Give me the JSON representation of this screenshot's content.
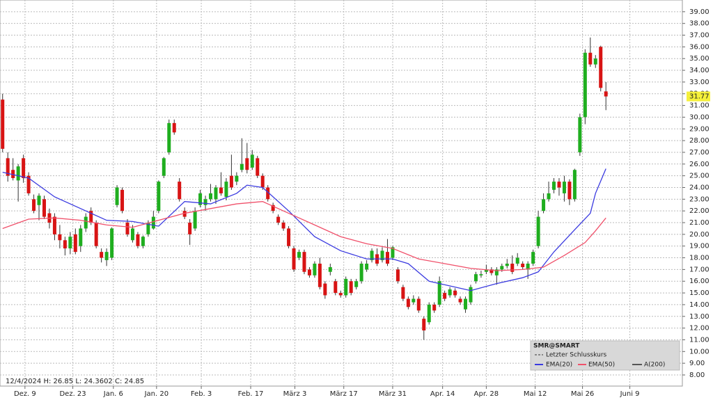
{
  "chart_data": {
    "type": "candlestick",
    "info": "12/4/2024  H: 26.85  L: 24.3602  C: 24.85",
    "up_color": "#1fae1f",
    "down_color": "#d81414",
    "ohlc": [
      [
        31.5,
        32,
        27,
        27.3
      ],
      [
        26.5,
        27,
        24.5,
        25
      ],
      [
        25.5,
        26.5,
        24.6,
        24.8
      ],
      [
        24.6,
        26,
        22.8,
        25.8
      ],
      [
        26.5,
        26.8,
        24.4,
        24.8
      ],
      [
        25,
        25.3,
        23.3,
        23.5
      ],
      [
        23,
        23.4,
        21.8,
        22
      ],
      [
        22.5,
        23.5,
        21.2,
        23.3
      ],
      [
        23,
        23.3,
        21.3,
        21.5
      ],
      [
        21.8,
        22.2,
        20.5,
        21
      ],
      [
        21.5,
        21.8,
        19.5,
        20
      ],
      [
        20,
        20.8,
        18.8,
        19.5
      ],
      [
        19.5,
        19.8,
        18.2,
        18.8
      ],
      [
        18.8,
        20.2,
        18.3,
        19.8
      ],
      [
        20,
        20.5,
        18.3,
        18.5
      ],
      [
        19,
        20.8,
        18.5,
        20.5
      ],
      [
        20.5,
        21.8,
        20.2,
        21.5
      ],
      [
        22,
        22.3,
        20.8,
        21
      ],
      [
        21,
        21.2,
        18.8,
        19
      ],
      [
        18.5,
        18.8,
        17.6,
        18
      ],
      [
        17.8,
        18.8,
        17.3,
        18.5
      ],
      [
        18,
        20.6,
        17.8,
        20.5
      ],
      [
        22.5,
        24.2,
        22.3,
        24
      ],
      [
        23.8,
        24,
        21.8,
        22
      ],
      [
        21,
        21.3,
        19.8,
        20
      ],
      [
        19.5,
        20.8,
        19.3,
        20.5
      ],
      [
        20,
        20.2,
        18.8,
        19
      ],
      [
        19,
        19.9,
        18.8,
        19.8
      ],
      [
        20,
        21.2,
        19.8,
        21
      ],
      [
        20.5,
        22,
        20.4,
        21.5
      ],
      [
        22,
        24.6,
        21.8,
        24.5
      ],
      [
        25,
        26.6,
        24.8,
        26.5
      ],
      [
        27,
        29.8,
        26.8,
        29.5
      ],
      [
        29.5,
        29.8,
        28.5,
        28.7
      ],
      [
        24.5,
        24.8,
        22.8,
        23
      ],
      [
        22,
        22.3,
        21.3,
        21.5
      ],
      [
        21,
        21.3,
        19.1,
        20
      ],
      [
        20.5,
        22.3,
        20.3,
        22
      ],
      [
        22.5,
        23.8,
        22.3,
        23.5
      ],
      [
        22.5,
        23.3,
        22,
        23
      ],
      [
        23,
        24.3,
        22.8,
        23.5
      ],
      [
        23,
        24.2,
        22.6,
        24
      ],
      [
        24,
        25.3,
        23.3,
        23.5
      ],
      [
        23.2,
        24.8,
        22.9,
        24.5
      ],
      [
        25,
        26.8,
        23.8,
        24
      ],
      [
        24.5,
        25.3,
        24.2,
        25
      ],
      [
        25.5,
        28.2,
        25.3,
        26
      ],
      [
        26.5,
        27.8,
        25.2,
        25.5
      ],
      [
        25.7,
        27.2,
        25.5,
        26.8
      ],
      [
        26.5,
        26.7,
        24.8,
        25
      ],
      [
        25,
        25.2,
        23.8,
        24
      ],
      [
        24,
        24.2,
        22.8,
        23
      ],
      [
        22.5,
        22.7,
        21.8,
        22
      ],
      [
        21.5,
        21.7,
        20.8,
        21
      ],
      [
        21,
        21.2,
        20.3,
        20.5
      ],
      [
        20.5,
        20.7,
        18.8,
        19
      ],
      [
        18.8,
        19,
        16.8,
        17
      ],
      [
        18,
        18.7,
        17.8,
        18.5
      ],
      [
        18.5,
        18.7,
        16.6,
        16.8
      ],
      [
        17,
        17.2,
        16.3,
        16.5
      ],
      [
        16.5,
        17.7,
        16.3,
        17.5
      ],
      [
        17.5,
        18,
        15.3,
        15.5
      ],
      [
        15.8,
        16,
        14.5,
        14.8
      ],
      [
        16.8,
        17.5,
        16.5,
        17.2
      ],
      [
        16,
        16.2,
        14.8,
        15
      ],
      [
        15,
        15.2,
        14.6,
        14.8
      ],
      [
        14.8,
        16.4,
        14.6,
        16.2
      ],
      [
        16,
        16.2,
        14.8,
        15
      ],
      [
        15.5,
        16.2,
        15.3,
        16
      ],
      [
        16,
        17.7,
        15.8,
        17.5
      ],
      [
        17,
        17.8,
        16.8,
        17.5
      ],
      [
        17.8,
        18.8,
        17.6,
        18.6
      ],
      [
        18.3,
        18.8,
        17.3,
        17.5
      ],
      [
        17.8,
        18.9,
        17.6,
        18.6
      ],
      [
        18.5,
        19.6,
        17.3,
        17.5
      ],
      [
        18,
        19,
        17.8,
        18.9
      ],
      [
        17,
        17.2,
        15.8,
        16
      ],
      [
        15.5,
        15.7,
        14.3,
        14.5
      ],
      [
        14.5,
        14.7,
        13.6,
        13.8
      ],
      [
        14.2,
        14.8,
        14,
        14.5
      ],
      [
        14.5,
        14.7,
        13.3,
        13.5
      ],
      [
        12.8,
        13,
        11,
        11.8
      ],
      [
        12.5,
        14.2,
        12.3,
        14
      ],
      [
        14,
        14.2,
        13.3,
        13.5
      ],
      [
        14,
        16.4,
        13.8,
        16
      ],
      [
        15,
        15.2,
        14.3,
        14.5
      ],
      [
        14.8,
        15.5,
        14.6,
        15.3
      ],
      [
        15.2,
        15.4,
        14.6,
        14.8
      ],
      [
        14.5,
        14.7,
        14,
        14.2
      ],
      [
        13.6,
        14.7,
        13.3,
        14.5
      ],
      [
        14.2,
        15.7,
        14,
        15.5
      ],
      [
        16,
        16.8,
        15.8,
        16.6
      ],
      [
        16.5,
        16.9,
        16.3,
        16.6
      ],
      [
        16.8,
        17.4,
        16.6,
        17
      ],
      [
        17,
        17.2,
        16.5,
        16.7
      ],
      [
        16.5,
        17.2,
        15.7,
        17
      ],
      [
        17,
        17.5,
        16.8,
        17.3
      ],
      [
        17.3,
        17.9,
        17.1,
        17.5
      ],
      [
        17.5,
        18.2,
        16.6,
        16.8
      ],
      [
        17.5,
        18.4,
        17.3,
        18
      ],
      [
        17.5,
        17.7,
        17,
        17.2
      ],
      [
        17,
        17.7,
        16.2,
        17.5
      ],
      [
        17.5,
        18.7,
        17.3,
        18.5
      ],
      [
        19,
        22,
        18.8,
        21.5
      ],
      [
        22,
        23.5,
        21.8,
        23
      ],
      [
        23,
        24.5,
        22.8,
        23.5
      ],
      [
        23.8,
        24.8,
        23.5,
        24.5
      ],
      [
        24.5,
        24.8,
        23.3,
        24
      ],
      [
        23.5,
        25,
        22.8,
        24.5
      ],
      [
        24.5,
        24.7,
        22.5,
        23
      ],
      [
        23,
        25.6,
        22.8,
        25.5
      ],
      [
        27,
        30.3,
        26.7,
        30
      ],
      [
        30,
        35.8,
        29.4,
        35.5
      ],
      [
        35.5,
        36.8,
        34.3,
        34.5
      ],
      [
        34.5,
        35.3,
        34.2,
        35
      ],
      [
        36,
        36.1,
        32.2,
        32.5
      ],
      [
        32.2,
        33,
        30.6,
        31.77
      ]
    ],
    "series": [
      {
        "name": "EMA(20)",
        "color": "#3a3ae0",
        "x": [
          0,
          5,
          10,
          15,
          20,
          25,
          30,
          35,
          40,
          45,
          47,
          50,
          55,
          60,
          65,
          70,
          75,
          78,
          82,
          86,
          90,
          95,
          100,
          103,
          106,
          110,
          113,
          114,
          116
        ],
        "values": [
          25.3,
          24.8,
          23.2,
          22.2,
          21.2,
          21.1,
          20.7,
          22.8,
          22.6,
          23.5,
          24.2,
          24.0,
          22.0,
          19.8,
          18.6,
          17.9,
          17.9,
          17.5,
          16.0,
          15.6,
          15.2,
          15.8,
          16.3,
          16.8,
          18.5,
          20.4,
          21.8,
          23.5,
          25.6
        ]
      },
      {
        "name": "EMA(50)",
        "color": "#f0506a",
        "x": [
          0,
          5,
          10,
          15,
          20,
          25,
          30,
          35,
          40,
          45,
          50,
          55,
          60,
          65,
          70,
          75,
          80,
          85,
          90,
          95,
          100,
          104,
          108,
          112,
          114,
          116
        ],
        "values": [
          20.5,
          21.3,
          21.4,
          21.2,
          20.8,
          20.6,
          21.2,
          21.8,
          22.2,
          22.6,
          22.8,
          21.8,
          20.8,
          19.8,
          19.2,
          18.8,
          17.9,
          17.5,
          17.1,
          16.9,
          17.0,
          17.2,
          18.2,
          19.3,
          20.3,
          21.4
        ]
      }
    ],
    "legend": {
      "title": "SMR@SMART",
      "last_close": "Letzter Schlusskurs",
      "extra": "A(200)"
    },
    "last_price": {
      "value": 31.77,
      "label": "31.77"
    },
    "xlim": [
      -0.5,
      130.7
    ],
    "xticks": [
      {
        "value": 4.3,
        "label": "Dez. 9"
      },
      {
        "value": 13.5,
        "label": "Dez. 23"
      },
      {
        "value": 21.3,
        "label": "Jan. 6"
      },
      {
        "value": 29.6,
        "label": "Jan. 20"
      },
      {
        "value": 38.2,
        "label": "Feb. 3"
      },
      {
        "value": 47.7,
        "label": "Feb. 17"
      },
      {
        "value": 56.2,
        "label": "März 3"
      },
      {
        "value": 65.6,
        "label": "März 17"
      },
      {
        "value": 75,
        "label": "März 31"
      },
      {
        "value": 84.6,
        "label": "Apr. 14"
      },
      {
        "value": 93,
        "label": "Apr. 28"
      },
      {
        "value": 102.4,
        "label": "Mai 12"
      },
      {
        "value": 111.5,
        "label": "Mai 26"
      },
      {
        "value": 120.6,
        "label": "Juni 9"
      }
    ],
    "ylim": [
      7.05,
      40.0
    ],
    "yticks": [
      {
        "value": 8,
        "label": "8.00"
      },
      {
        "value": 9,
        "label": "9.00"
      },
      {
        "value": 10,
        "label": "10.00"
      },
      {
        "value": 11,
        "label": "11.00"
      },
      {
        "value": 12,
        "label": "12.00"
      },
      {
        "value": 13,
        "label": "13.00"
      },
      {
        "value": 14,
        "label": "14.00"
      },
      {
        "value": 15,
        "label": "15.00"
      },
      {
        "value": 16,
        "label": "16.00"
      },
      {
        "value": 17,
        "label": "17.00"
      },
      {
        "value": 18,
        "label": "18.00"
      },
      {
        "value": 19,
        "label": "19.00"
      },
      {
        "value": 20,
        "label": "20.00"
      },
      {
        "value": 21,
        "label": "21.00"
      },
      {
        "value": 22,
        "label": "22.00"
      },
      {
        "value": 23,
        "label": "23.00"
      },
      {
        "value": 24,
        "label": "24.00"
      },
      {
        "value": 25,
        "label": "25.00"
      },
      {
        "value": 26,
        "label": "26.00"
      },
      {
        "value": 27,
        "label": "27.00"
      },
      {
        "value": 28,
        "label": "28.00"
      },
      {
        "value": 29,
        "label": "29.00"
      },
      {
        "value": 30,
        "label": "30.00"
      },
      {
        "value": 31,
        "label": "31.00"
      },
      {
        "value": 32,
        "label": "32.00"
      },
      {
        "value": 33,
        "label": "33.00"
      },
      {
        "value": 34,
        "label": "34.00"
      },
      {
        "value": 35,
        "label": "35.00"
      },
      {
        "value": 36,
        "label": "36.00"
      },
      {
        "value": 37,
        "label": "37.00"
      },
      {
        "value": 38,
        "label": "38.00"
      },
      {
        "value": 39,
        "label": "39.00"
      }
    ],
    "grid": true
  }
}
